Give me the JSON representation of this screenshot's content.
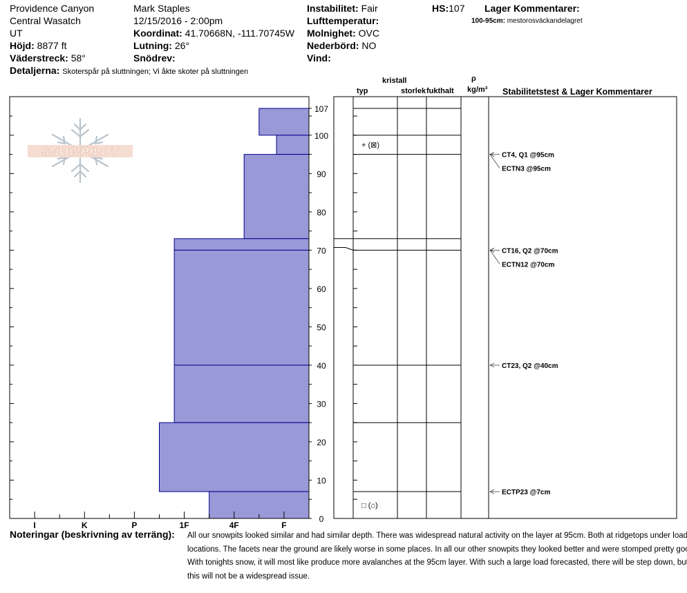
{
  "header": {
    "location": "Providence Canyon",
    "range": "Central Wasatch",
    "state": "UT",
    "elevation_label": "Höjd:",
    "elevation_value": "8877 ft",
    "aspect_label": "Väderstreck:",
    "aspect_value": "58°",
    "details_label": "Detaljerna:",
    "details_value": "Skoterspår på sluttningen;  Vi åkte skoter på sluttningen",
    "observer": "Mark Staples",
    "datetime": "12/15/2016 - 2:00pm",
    "coord_label": "Koordinat:",
    "coord_value": "41.70668N, -111.70745W",
    "slope_label": "Lutning:",
    "slope_value": "26°",
    "wind_snow_label": "Snödrev:",
    "instability_label": "Instabilitet:",
    "instability_value": "Fair",
    "airtemp_label": "Lufttemperatur:",
    "sky_label": "Molnighet:",
    "sky_value": "OVC",
    "precip_label": "Nederbörd:",
    "precip_value": "NO",
    "wind_label": "Vind:",
    "hs_label": "HS:",
    "hs_value": "107",
    "layer_comments_title": "Lager Kommentarer:",
    "layer_comment_range": "100-95cm:",
    "layer_comment_text": "mestorosväckandelagret"
  },
  "logo_text": "SNOWPILOT",
  "columns": {
    "crystal": "kristall",
    "type": "typ",
    "size": "storlek",
    "moisture": "fukthalt",
    "rho": "ρ",
    "density_unit": "kg/m³",
    "stability": "Stabilitetstest & Lager Kommentarer"
  },
  "chart_data": {
    "type": "bar",
    "orientation": "horizontal",
    "y_range": [
      0,
      107
    ],
    "y_ticks": [
      "0",
      "10",
      "20",
      "30",
      "40",
      "50",
      "60",
      "70",
      "80",
      "90",
      "100",
      "107"
    ],
    "y_tick_values": [
      0,
      10,
      20,
      30,
      40,
      50,
      60,
      70,
      80,
      90,
      100,
      107
    ],
    "hardness_labels": [
      "I",
      "K",
      "P",
      "1F",
      "4F",
      "F"
    ],
    "hardness_label_values": [
      5.5,
      4.5,
      3.5,
      2.5,
      1.5,
      0.5
    ],
    "hardness_axis_max": 6,
    "bar_color": "#9999d8",
    "bar_edge_color": "#00008b",
    "layers": [
      {
        "top": 107,
        "bottom": 100,
        "hardness": 1.0
      },
      {
        "top": 100,
        "bottom": 95,
        "hardness": 0.65
      },
      {
        "top": 95,
        "bottom": 73,
        "hardness": 1.3
      },
      {
        "top": 73,
        "bottom": 70,
        "hardness": 2.7
      },
      {
        "top": 70,
        "bottom": 40,
        "hardness": 2.7
      },
      {
        "top": 40,
        "bottom": 25,
        "hardness": 2.7
      },
      {
        "top": 25,
        "bottom": 7,
        "hardness": 3.0
      },
      {
        "top": 7,
        "bottom": 0,
        "hardness": 2.0
      }
    ],
    "crystal_symbols": [
      {
        "depth": 97.5,
        "label": "+ (⊠)"
      },
      {
        "depth": 3.5,
        "label": "□ (⌂)"
      }
    ],
    "stability_tests": [
      {
        "depth": 95,
        "label": "CT4, Q1 @95cm"
      },
      {
        "depth": 95,
        "label": "ECTN3 @95cm"
      },
      {
        "depth": 70,
        "label": "CT16, Q2 @70cm"
      },
      {
        "depth": 70,
        "label": "ECTN12 @70cm"
      },
      {
        "depth": 40,
        "label": "CT23, Q2 @40cm"
      },
      {
        "depth": 7,
        "label": "ECTP23 @7cm"
      }
    ]
  },
  "notes": {
    "label": "Noteringar (beskrivning av terräng):",
    "text": "All our snowpits looked similar and had similar depth. There was widespread natural activity on the layer at 95cm. Both at ridgetops under loaded locations. The facets near the ground are likely worse in some places. In all our other snowpits they looked better and were stomped pretty good. With tonights snow, it will most like produce more avalanches at the 95cm layer. With such a large load forecasted, there will be step down, but this will not be a widespread issue."
  }
}
